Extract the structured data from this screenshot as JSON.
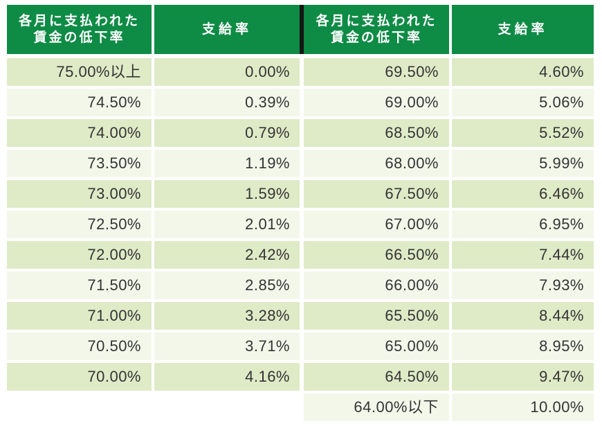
{
  "table": {
    "header": {
      "rate_label_line1": "各月に支払われた",
      "rate_label_line2": "賃金の低下率",
      "pay_label": "支給率"
    },
    "rows": [
      {
        "left_rate": "75.00%以上",
        "left_pay": "0.00%",
        "right_rate": "69.50%",
        "right_pay": "4.60%"
      },
      {
        "left_rate": "74.50%",
        "left_pay": "0.39%",
        "right_rate": "69.00%",
        "right_pay": "5.06%"
      },
      {
        "left_rate": "74.00%",
        "left_pay": "0.79%",
        "right_rate": "68.50%",
        "right_pay": "5.52%"
      },
      {
        "left_rate": "73.50%",
        "left_pay": "1.19%",
        "right_rate": "68.00%",
        "right_pay": "5.99%"
      },
      {
        "left_rate": "73.00%",
        "left_pay": "1.59%",
        "right_rate": "67.50%",
        "right_pay": "6.46%"
      },
      {
        "left_rate": "72.50%",
        "left_pay": "2.01%",
        "right_rate": "67.00%",
        "right_pay": "6.95%"
      },
      {
        "left_rate": "72.00%",
        "left_pay": "2.42%",
        "right_rate": "66.50%",
        "right_pay": "7.44%"
      },
      {
        "left_rate": "71.50%",
        "left_pay": "2.85%",
        "right_rate": "66.00%",
        "right_pay": "7.93%"
      },
      {
        "left_rate": "71.00%",
        "left_pay": "3.28%",
        "right_rate": "65.50%",
        "right_pay": "8.44%"
      },
      {
        "left_rate": "70.50%",
        "left_pay": "3.71%",
        "right_rate": "65.00%",
        "right_pay": "8.95%"
      },
      {
        "left_rate": "70.00%",
        "left_pay": "4.16%",
        "right_rate": "64.50%",
        "right_pay": "9.47%"
      },
      {
        "left_rate": "",
        "left_pay": "",
        "right_rate": "64.00%以下",
        "right_pay": "10.00%"
      }
    ],
    "colors": {
      "header_green": "#0e8b45",
      "row_dark": "#dfeac7",
      "row_light": "#f3f7ea",
      "divider_dark": "#151515",
      "text": "#333333",
      "header_text": "#ffffff"
    }
  }
}
